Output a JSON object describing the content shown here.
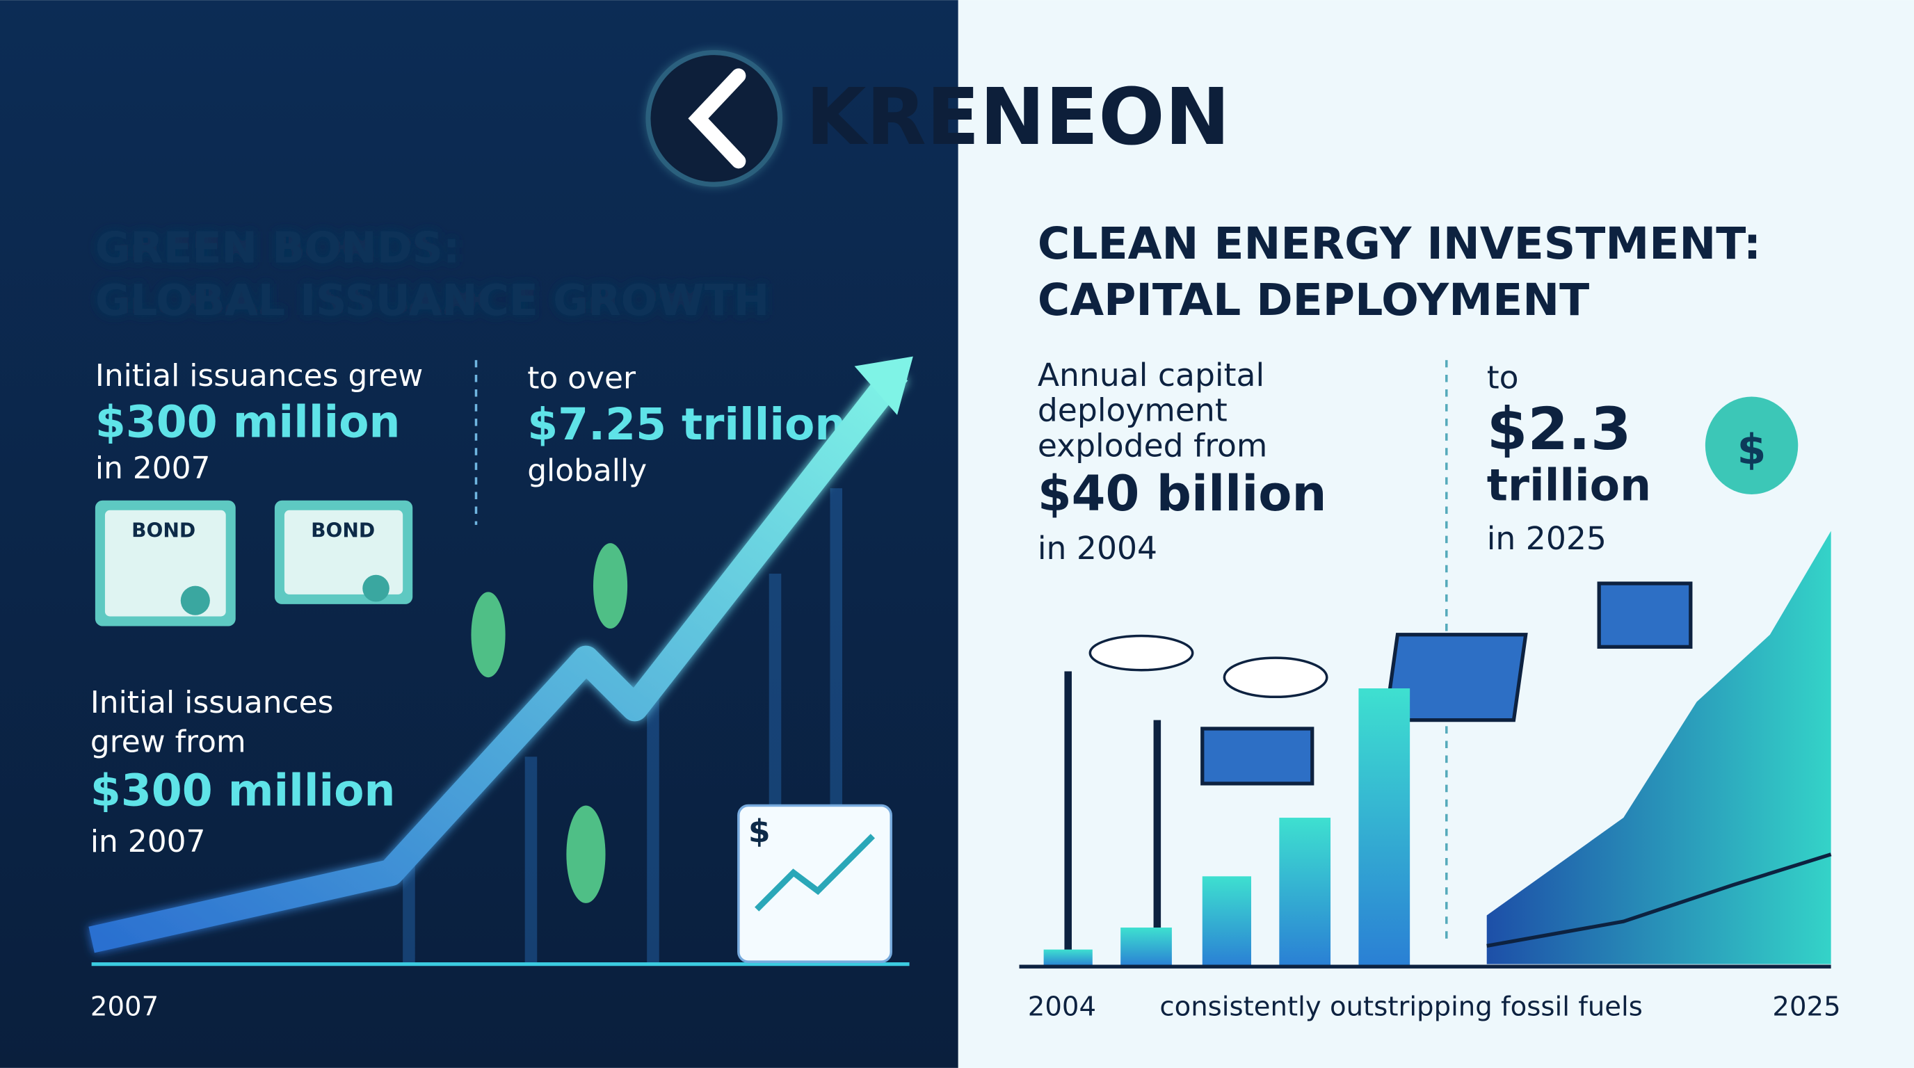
{
  "brand": "KRENEON",
  "left": {
    "title": [
      "GREEN BONDS:",
      "GLOBAL ISSUANCE GROWTH"
    ],
    "block1": [
      "Initial issuances grew",
      "$300 million",
      "in 2007"
    ],
    "block2": [
      "to over",
      "$7.25 trillion",
      "globally"
    ],
    "bonds": [
      "BOND",
      "BOND"
    ],
    "block3": [
      "Initial issuances",
      "grew from",
      "$300 million",
      "in 2007"
    ],
    "icon_symbol": "$",
    "axis_label": "2007"
  },
  "right": {
    "title": [
      "CLEAN ENERGY INVESTMENT:",
      "CAPITAL DEPLOYMENT"
    ],
    "block1": [
      "Annual capital",
      "deployment",
      "exploded from",
      "$40 billion",
      "in 2004"
    ],
    "block2": [
      "to",
      "$2.3",
      "trillion",
      "in 2025"
    ],
    "bag_symbol": "$",
    "axis_labels": [
      "2004",
      "consistently outstripping fossil fuels",
      "2025"
    ]
  }
}
